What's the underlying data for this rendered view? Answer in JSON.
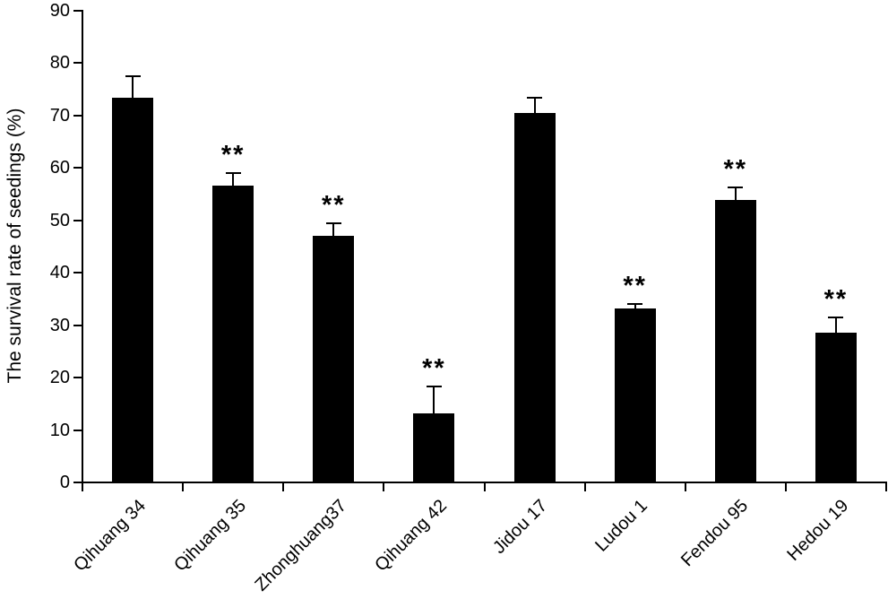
{
  "chart_data": {
    "type": "bar",
    "title": "",
    "ylabel": "The survival rate of seedings (%)",
    "xlabel": "",
    "categories": [
      "Qihuang 34",
      "Qihuang 35",
      "Zhonghuang37",
      "Qihuang 42",
      "Jidou 17",
      "Ludou 1",
      "Fendou 95",
      "Hedou 19"
    ],
    "values": [
      73.3,
      56.4,
      46.9,
      13.0,
      70.3,
      33.0,
      53.7,
      28.4
    ],
    "errors_plus": [
      4.2,
      2.7,
      2.6,
      5.3,
      3.1,
      1.1,
      2.6,
      3.1
    ],
    "significance": [
      "",
      "**",
      "**",
      "**",
      "",
      "**",
      "**",
      "**"
    ],
    "ylim": [
      0,
      90
    ],
    "yticks": [
      0,
      10,
      20,
      30,
      40,
      50,
      60,
      70,
      80,
      90
    ],
    "bar_color": "#000000",
    "axis_color": "#000000",
    "background_color": "#ffffff",
    "grid": false,
    "legend": "none",
    "error_bar_direction": "upper",
    "x_label_rotation_deg": 45
  }
}
